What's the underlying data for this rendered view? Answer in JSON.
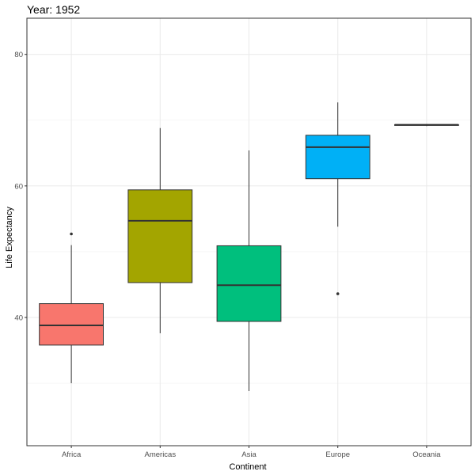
{
  "chart_data": {
    "type": "boxplot",
    "title": "Year: 1952",
    "xlabel": "Continent",
    "ylabel": "Life Expectancy",
    "ylim": [
      20.5,
      85.5
    ],
    "yticks": [
      40,
      60,
      80
    ],
    "y_minor_ticks": [
      30,
      50,
      70
    ],
    "grid": true,
    "legend": "none",
    "categories": [
      "Africa",
      "Americas",
      "Asia",
      "Europe",
      "Oceania"
    ],
    "boxes": [
      {
        "category": "Africa",
        "color": "#F8766D",
        "whisker_low": 30.0,
        "q1": 35.8,
        "median": 38.8,
        "q3": 42.1,
        "whisker_high": 51.0,
        "outliers": [
          52.7
        ]
      },
      {
        "category": "Americas",
        "color": "#A3A500",
        "whisker_low": 37.6,
        "q1": 45.3,
        "median": 54.7,
        "q3": 59.4,
        "whisker_high": 68.8,
        "outliers": []
      },
      {
        "category": "Asia",
        "color": "#00BF7D",
        "whisker_low": 28.8,
        "q1": 39.4,
        "median": 44.9,
        "q3": 50.9,
        "whisker_high": 65.4,
        "outliers": []
      },
      {
        "category": "Europe",
        "color": "#00B0F6",
        "whisker_low": 53.8,
        "q1": 61.1,
        "median": 65.9,
        "q3": 67.7,
        "whisker_high": 72.7,
        "outliers": [
          43.6
        ]
      },
      {
        "category": "Oceania",
        "color": "#E76BF3",
        "whisker_low": 69.1,
        "q1": 69.2,
        "median": 69.3,
        "q3": 69.3,
        "whisker_high": 69.4,
        "outliers": []
      }
    ]
  }
}
